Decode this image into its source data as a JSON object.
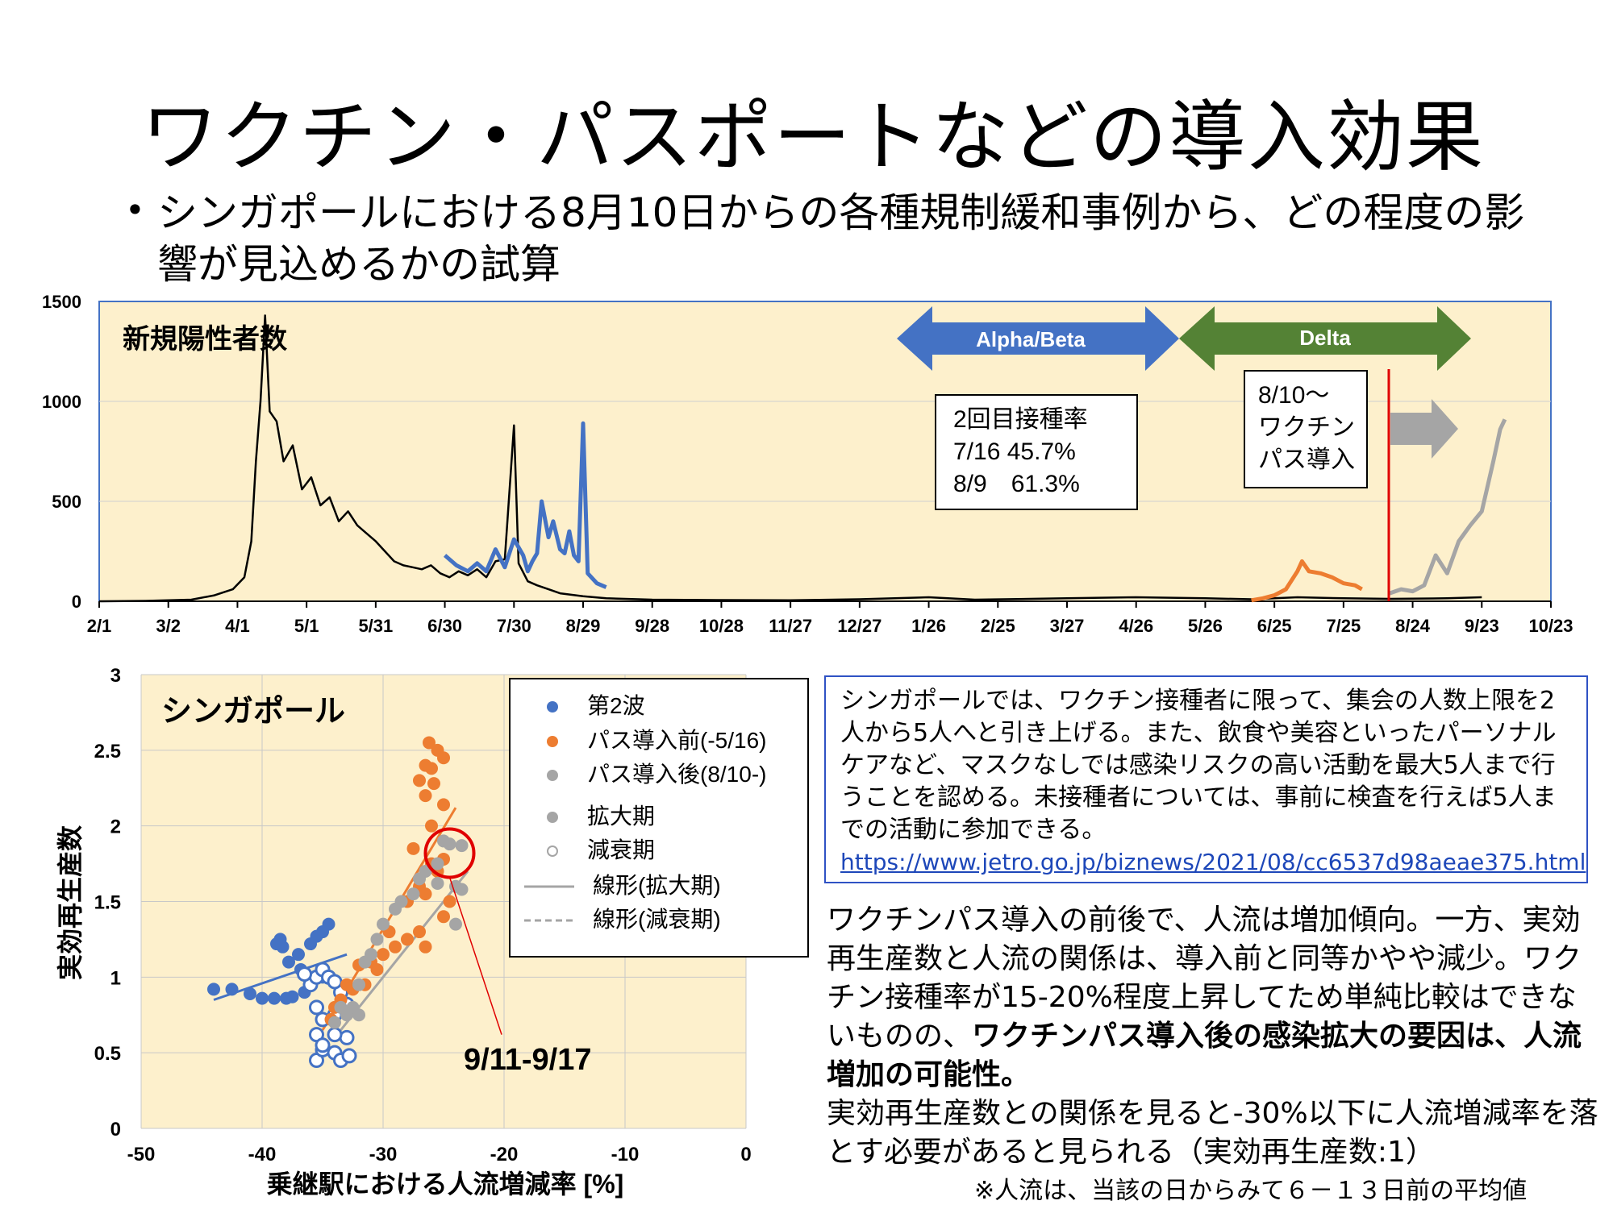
{
  "title": "ワクチン・パスポートなどの導入効果",
  "bullet": "シンガポールにおける8月10日からの各種規制緩和事例から、どの程度の影響が見込めるかの試算",
  "top_chart": {
    "label": "新規陽性者数",
    "arrow_alpha": "Alpha/Beta",
    "arrow_delta": "Delta",
    "rate_box": [
      "2回目接種率",
      "7/16 45.7%",
      "8/9　61.3%"
    ],
    "pass_box": [
      "8/10～",
      "ワクチン",
      "パス導入"
    ]
  },
  "bottom_chart": {
    "label": "シンガポール",
    "annotation": "9/11-9/17",
    "legend": [
      "第2波",
      "パス導入前(-5/16)",
      "パス導入後(8/10-)",
      "拡大期",
      "減衰期",
      "線形(拡大期)",
      "線形(減衰期)"
    ]
  },
  "description": {
    "text": "シンガポールでは、ワクチン接種者に限って、集会の人数上限を2人から5人へと引き上げる。また、飲食や美容といったパーソナルケアなど、マスクなしでは感染リスクの高い活動を最大5人まで行うことを認める。未接種者については、事前に検査を行えば5人までの活動に参加できる。",
    "link": "https://www.jetro.go.jp/biznews/2021/08/cc6537d98aeae375.html"
  },
  "analysis": {
    "part1": "ワクチンパス導入の前後で、人流は増加傾向。一方、実効再生産数と人流の関係は、導入前と同等かやや減少。ワクチン接種率が15-20%程度上昇してため単純比較はできないものの、",
    "bold": "ワクチンパス導入後の感染拡大の要因は、人流増加の可能性。",
    "part2": "実効再生産数との関係を見ると-30%以下に人流増減率を落とす必要があると見られる（実効再生産数:1）"
  },
  "footnote": "※人流は、当該の日からみて６－１３日前の平均値",
  "colors": {
    "plot_bg": "#fdf0cc",
    "black_series": "#000000",
    "blue": "#4472c4",
    "orange": "#ed7d31",
    "gray": "#a5a5a5",
    "alpha_arrow": "#4472c4",
    "delta_arrow": "#548235",
    "red": "#e00000"
  },
  "chart_data": [
    {
      "type": "line",
      "title": "新規陽性者数",
      "x_tick_labels": [
        "2/1",
        "3/2",
        "4/1",
        "5/1",
        "5/31",
        "6/30",
        "7/30",
        "8/29",
        "9/28",
        "10/28",
        "11/27",
        "12/27",
        "1/26",
        "2/25",
        "3/27",
        "4/26",
        "5/26",
        "6/25",
        "7/25",
        "8/24",
        "9/23",
        "10/23"
      ],
      "ylim": [
        0,
        1500
      ],
      "y_ticks": [
        0,
        500,
        1000,
        1500
      ],
      "x_unit": "days since 2/1/2020 (ticks every 30 days)",
      "series": [
        {
          "name": "total",
          "color": "#000000",
          "points": [
            [
              0,
              0
            ],
            [
              20,
              2
            ],
            [
              40,
              8
            ],
            [
              50,
              30
            ],
            [
              58,
              60
            ],
            [
              63,
              120
            ],
            [
              66,
              300
            ],
            [
              68,
              700
            ],
            [
              70,
              1000
            ],
            [
              72,
              1430
            ],
            [
              74,
              950
            ],
            [
              77,
              900
            ],
            [
              80,
              700
            ],
            [
              84,
              780
            ],
            [
              88,
              560
            ],
            [
              92,
              620
            ],
            [
              96,
              480
            ],
            [
              100,
              520
            ],
            [
              104,
              400
            ],
            [
              108,
              450
            ],
            [
              112,
              380
            ],
            [
              116,
              340
            ],
            [
              120,
              300
            ],
            [
              124,
              250
            ],
            [
              128,
              200
            ],
            [
              132,
              180
            ],
            [
              136,
              170
            ],
            [
              140,
              160
            ],
            [
              144,
              180
            ],
            [
              148,
              140
            ],
            [
              152,
              120
            ],
            [
              156,
              150
            ],
            [
              160,
              130
            ],
            [
              164,
              160
            ],
            [
              168,
              120
            ],
            [
              172,
              200
            ],
            [
              176,
              210
            ],
            [
              180,
              880
            ],
            [
              182,
              190
            ],
            [
              186,
              100
            ],
            [
              190,
              80
            ],
            [
              195,
              60
            ],
            [
              200,
              40
            ],
            [
              210,
              25
            ],
            [
              220,
              15
            ],
            [
              240,
              8
            ],
            [
              270,
              6
            ],
            [
              300,
              5
            ],
            [
              330,
              10
            ],
            [
              360,
              20
            ],
            [
              380,
              8
            ],
            [
              420,
              15
            ],
            [
              450,
              20
            ],
            [
              480,
              15
            ],
            [
              500,
              10
            ],
            [
              520,
              20
            ],
            [
              540,
              15
            ],
            [
              560,
              12
            ],
            [
              585,
              15
            ],
            [
              600,
              20
            ]
          ]
        },
        {
          "name": "wave2",
          "color": "#4472c4",
          "points": [
            [
              150,
              230
            ],
            [
              155,
              180
            ],
            [
              160,
              150
            ],
            [
              164,
              190
            ],
            [
              168,
              150
            ],
            [
              172,
              260
            ],
            [
              176,
              170
            ],
            [
              180,
              310
            ],
            [
              184,
              230
            ],
            [
              186,
              150
            ],
            [
              188,
              200
            ],
            [
              190,
              240
            ],
            [
              192,
              500
            ],
            [
              195,
              320
            ],
            [
              197,
              400
            ],
            [
              200,
              260
            ],
            [
              202,
              240
            ],
            [
              204,
              350
            ],
            [
              206,
              230
            ],
            [
              208,
              200
            ],
            [
              210,
              890
            ],
            [
              212,
              140
            ],
            [
              216,
              90
            ],
            [
              220,
              70
            ]
          ]
        },
        {
          "name": "pre_pass",
          "color": "#ed7d31",
          "points": [
            [
              500,
              5
            ],
            [
              505,
              15
            ],
            [
              510,
              30
            ],
            [
              515,
              60
            ],
            [
              520,
              150
            ],
            [
              522,
              200
            ],
            [
              525,
              150
            ],
            [
              530,
              140
            ],
            [
              535,
              120
            ],
            [
              540,
              90
            ],
            [
              545,
              80
            ],
            [
              548,
              60
            ]
          ]
        },
        {
          "name": "post_pass",
          "color": "#a5a5a5",
          "points": [
            [
              560,
              40
            ],
            [
              565,
              60
            ],
            [
              570,
              50
            ],
            [
              575,
              80
            ],
            [
              580,
              230
            ],
            [
              585,
              140
            ],
            [
              590,
              300
            ],
            [
              595,
              380
            ],
            [
              600,
              450
            ],
            [
              605,
              700
            ],
            [
              608,
              860
            ],
            [
              610,
              910
            ]
          ]
        }
      ],
      "annotations": [
        {
          "text": "Alpha/Beta",
          "type": "double-arrow"
        },
        {
          "text": "Delta",
          "type": "double-arrow"
        },
        {
          "text": "8/10～ ワクチン パス導入",
          "marker": "vertical red line at 8/10"
        }
      ]
    },
    {
      "type": "scatter",
      "title": "シンガポール",
      "xlabel": "乗継駅における人流増減率 [%]",
      "ylabel": "実効再生産数",
      "xlim": [
        -50,
        0
      ],
      "ylim": [
        0,
        3
      ],
      "x_ticks": [
        -50,
        -40,
        -30,
        -20,
        -10,
        0
      ],
      "y_ticks": [
        0,
        0.5,
        1,
        1.5,
        2,
        2.5,
        3
      ],
      "legend_position": "top-right",
      "series": [
        {
          "name": "第2波 拡大期",
          "color": "#4472c4",
          "marker": "filled",
          "points": [
            [
              -44,
              0.92
            ],
            [
              -42.5,
              0.92
            ],
            [
              -41,
              0.89
            ],
            [
              -40,
              0.86
            ],
            [
              -39,
              0.86
            ],
            [
              -38,
              0.86
            ],
            [
              -37.5,
              0.87
            ],
            [
              -36.5,
              0.9
            ],
            [
              -36,
              0.95
            ],
            [
              -35,
              1.0
            ],
            [
              -38.5,
              1.25
            ],
            [
              -38.3,
              1.2
            ],
            [
              -37,
              1.15
            ],
            [
              -36,
              1.22
            ],
            [
              -35.5,
              1.27
            ],
            [
              -35,
              1.3
            ],
            [
              -34.5,
              1.35
            ],
            [
              -38.8,
              1.22
            ],
            [
              -37.8,
              1.1
            ],
            [
              -36.8,
              1.05
            ]
          ]
        },
        {
          "name": "第2波 減衰期",
          "color": "#4472c4",
          "marker": "open",
          "points": [
            [
              -35.5,
              0.45
            ],
            [
              -35,
              0.52
            ],
            [
              -34,
              0.5
            ],
            [
              -33.5,
              0.45
            ],
            [
              -32.8,
              0.48
            ],
            [
              -33,
              0.6
            ],
            [
              -34,
              0.62
            ],
            [
              -35.5,
              0.62
            ],
            [
              -35,
              0.72
            ],
            [
              -34,
              0.75
            ],
            [
              -35.5,
              0.8
            ],
            [
              -36,
              0.95
            ],
            [
              -35.5,
              1.0
            ],
            [
              -35,
              1.05
            ],
            [
              -34.5,
              1.0
            ],
            [
              -33.5,
              0.9
            ],
            [
              -33,
              0.82
            ],
            [
              -34,
              0.97
            ],
            [
              -36.5,
              1.02
            ],
            [
              -35,
              0.55
            ]
          ]
        },
        {
          "name": "パス導入前 拡大期",
          "color": "#ed7d31",
          "marker": "filled",
          "points": [
            [
              -26,
              2.38
            ],
            [
              -26.5,
              2.4
            ],
            [
              -25.5,
              2.5
            ],
            [
              -26.2,
              2.55
            ],
            [
              -25,
              2.45
            ],
            [
              -27,
              2.3
            ],
            [
              -26.5,
              2.2
            ],
            [
              -25.8,
              2.28
            ],
            [
              -25,
              2.14
            ],
            [
              -26,
              2.0
            ],
            [
              -27.5,
              1.85
            ],
            [
              -26,
              1.75
            ],
            [
              -25,
              1.78
            ],
            [
              -27,
              1.6
            ],
            [
              -26.5,
              1.55
            ],
            [
              -25.5,
              1.7
            ],
            [
              -28,
              1.5
            ],
            [
              -27,
              1.3
            ],
            [
              -28,
              1.25
            ],
            [
              -26.5,
              1.2
            ],
            [
              -29,
              1.2
            ],
            [
              -30,
              1.15
            ],
            [
              -30.5,
              1.05
            ],
            [
              -31.5,
              0.95
            ],
            [
              -32.5,
              0.92
            ],
            [
              -33.5,
              0.85
            ],
            [
              -34,
              0.8
            ],
            [
              -32,
              1.08
            ],
            [
              -33,
              0.95
            ],
            [
              -25,
              1.4
            ],
            [
              -24.5,
              1.5
            ],
            [
              -29.5,
              1.3
            ],
            [
              -31,
              1.1
            ],
            [
              -34.3,
              0.72
            ]
          ]
        },
        {
          "name": "パス導入後 拡大期",
          "color": "#a5a5a5",
          "marker": "filled",
          "points": [
            [
              -25,
              1.9
            ],
            [
              -24.5,
              1.88
            ],
            [
              -23.5,
              1.87
            ],
            [
              -25.5,
              1.75
            ],
            [
              -26.5,
              1.7
            ],
            [
              -27,
              1.65
            ],
            [
              -24,
              1.6
            ],
            [
              -23.5,
              1.58
            ],
            [
              -24,
              1.35
            ],
            [
              -25.5,
              1.62
            ],
            [
              -27.5,
              1.55
            ],
            [
              -28.5,
              1.5
            ],
            [
              -29,
              1.45
            ],
            [
              -30,
              1.35
            ],
            [
              -30.5,
              1.25
            ],
            [
              -31,
              1.15
            ],
            [
              -31.5,
              1.1
            ],
            [
              -32,
              0.95
            ],
            [
              -32.5,
              0.8
            ],
            [
              -33,
              0.75
            ],
            [
              -32,
              0.75
            ],
            [
              -34,
              0.7
            ],
            [
              -33.5,
              0.8
            ]
          ]
        }
      ],
      "trendlines": [
        {
          "name": "線形(拡大期)",
          "color": "#4472c4",
          "from": [
            -44,
            0.85
          ],
          "to": [
            -33,
            1.15
          ]
        },
        {
          "name": "線形(拡大期)",
          "color": "#ed7d31",
          "from": [
            -35,
            0.65
          ],
          "to": [
            -24,
            2.12
          ]
        },
        {
          "name": "線形(拡大期)",
          "color": "#a5a5a5",
          "from": [
            -34,
            0.6
          ],
          "to": [
            -23,
            1.7
          ]
        }
      ],
      "annotations": [
        {
          "text": "9/11-9/17",
          "highlight": "red circle at (-24.5, 1.82)"
        }
      ]
    }
  ]
}
